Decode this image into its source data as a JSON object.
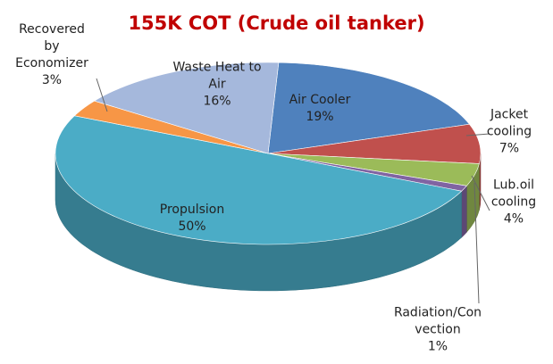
{
  "chart_data": {
    "type": "pie3d",
    "title": "155K COT (Crude oil tanker)",
    "categories": [
      "Air Cooler",
      "Jacket cooling",
      "Lub.oil cooling",
      "Radiation/Convection",
      "Propulsion",
      "Recovered by Economizer",
      "Waste Heat to Air"
    ],
    "values": [
      19,
      7,
      4,
      1,
      50,
      3,
      16
    ],
    "value_labels": [
      "19%",
      "7%",
      "4%",
      "1%",
      "50%",
      "3%",
      "16%"
    ],
    "colors": [
      "#4f81bd",
      "#c0504d",
      "#9bbb59",
      "#8064a2",
      "#4bacc6",
      "#f79646",
      "#a5b8dc"
    ]
  }
}
